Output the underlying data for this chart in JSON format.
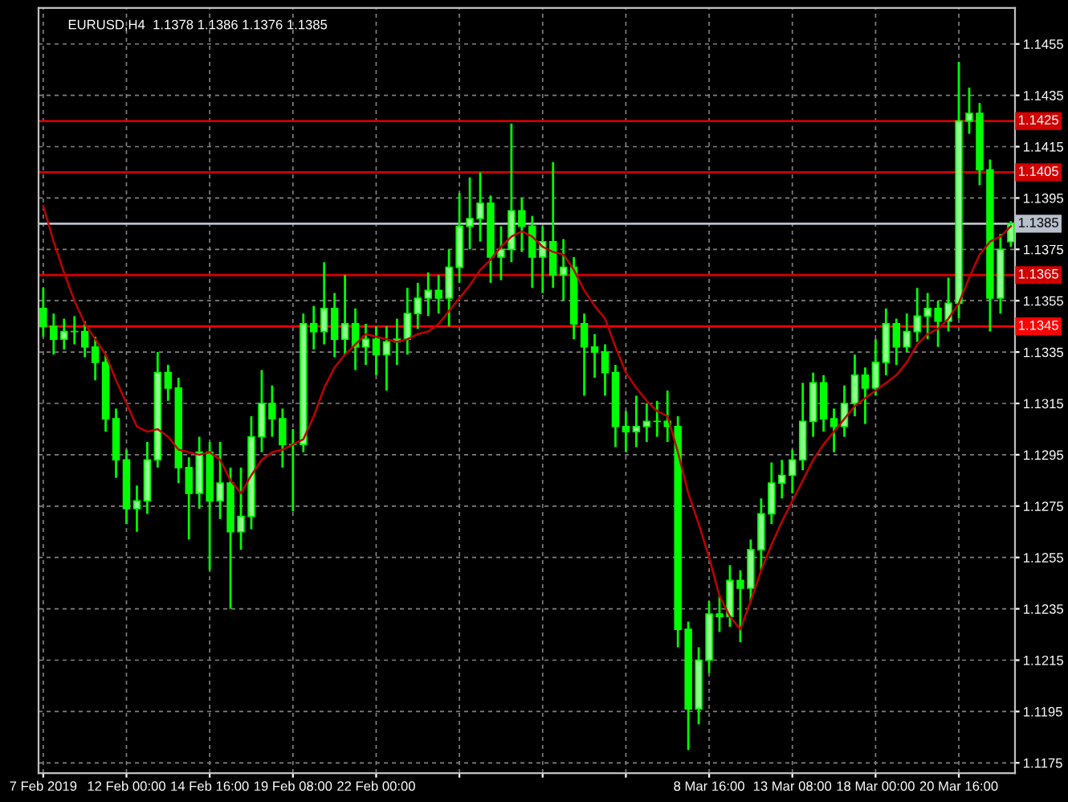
{
  "chart_data": {
    "type": "candlestick",
    "title": "EURUSD,H4  1.1378 1.1386 1.1376 1.1385",
    "categories": [
      "7 Feb 2019",
      null,
      null,
      null,
      null,
      null,
      null,
      null,
      "12 Feb 00:00",
      null,
      null,
      null,
      null,
      null,
      null,
      null,
      "14 Feb 16:00",
      null,
      null,
      null,
      null,
      null,
      null,
      null,
      "19 Feb 08:00",
      null,
      null,
      null,
      null,
      null,
      null,
      null,
      "22 Feb 00:00",
      null,
      null,
      null,
      null,
      null,
      null,
      null,
      null,
      null,
      null,
      null,
      null,
      null,
      null,
      null,
      null,
      null,
      null,
      null,
      null,
      null,
      null,
      null,
      null,
      null,
      null,
      null,
      null,
      null,
      null,
      null,
      "8 Mar 16:00",
      null,
      null,
      null,
      null,
      null,
      null,
      null,
      "13 Mar 08:00",
      null,
      null,
      null,
      null,
      null,
      null,
      null,
      "18 Mar 00:00",
      null,
      null,
      null,
      null,
      null,
      null,
      null,
      "20 Mar 16:00",
      null,
      null,
      null,
      null,
      null
    ],
    "series": [
      {
        "type": "candlestick",
        "color": "#00ff00",
        "ohlc": [
          [
            1.1352,
            1.136,
            1.1341,
            1.1345
          ],
          [
            1.1345,
            1.135,
            1.1334,
            1.134
          ],
          [
            1.134,
            1.1348,
            1.1336,
            1.1343
          ],
          [
            1.1343,
            1.1349,
            1.1338,
            1.1343
          ],
          [
            1.1343,
            1.1347,
            1.1333,
            1.1337
          ],
          [
            1.1337,
            1.1341,
            1.1324,
            1.1331
          ],
          [
            1.1331,
            1.1334,
            1.1304,
            1.1309
          ],
          [
            1.1309,
            1.1313,
            1.1286,
            1.1293
          ],
          [
            1.1293,
            1.1297,
            1.1268,
            1.1274
          ],
          [
            1.1274,
            1.1283,
            1.1265,
            1.1277
          ],
          [
            1.1277,
            1.13,
            1.1272,
            1.1293
          ],
          [
            1.1293,
            1.1335,
            1.129,
            1.1327
          ],
          [
            1.1327,
            1.133,
            1.1316,
            1.1321
          ],
          [
            1.1321,
            1.1325,
            1.1284,
            1.129
          ],
          [
            1.129,
            1.1294,
            1.1262,
            1.128
          ],
          [
            1.128,
            1.1302,
            1.1274,
            1.1296
          ],
          [
            1.1296,
            1.13,
            1.125,
            1.1277
          ],
          [
            1.1277,
            1.13,
            1.127,
            1.1284
          ],
          [
            1.1284,
            1.129,
            1.1235,
            1.1265
          ],
          [
            1.1265,
            1.129,
            1.1258,
            1.1271
          ],
          [
            1.1271,
            1.131,
            1.1266,
            1.1302
          ],
          [
            1.1302,
            1.1328,
            1.1296,
            1.1315
          ],
          [
            1.1315,
            1.1322,
            1.1302,
            1.1309
          ],
          [
            1.1309,
            1.1313,
            1.129,
            1.1299
          ],
          [
            1.1299,
            1.1305,
            1.1273,
            1.1299
          ],
          [
            1.1299,
            1.135,
            1.1296,
            1.1346
          ],
          [
            1.1346,
            1.1353,
            1.1336,
            1.1343
          ],
          [
            1.1343,
            1.137,
            1.1338,
            1.1352
          ],
          [
            1.1352,
            1.1358,
            1.1333,
            1.134
          ],
          [
            1.134,
            1.1365,
            1.1334,
            1.1346
          ],
          [
            1.1346,
            1.1352,
            1.1328,
            1.1337
          ],
          [
            1.1337,
            1.1346,
            1.133,
            1.134
          ],
          [
            1.134,
            1.1345,
            1.1326,
            1.1334
          ],
          [
            1.1334,
            1.1345,
            1.132,
            1.1339
          ],
          [
            1.1339,
            1.1348,
            1.133,
            1.134
          ],
          [
            1.134,
            1.136,
            1.1334,
            1.135
          ],
          [
            1.135,
            1.1362,
            1.1344,
            1.1356
          ],
          [
            1.1356,
            1.1366,
            1.1349,
            1.1359
          ],
          [
            1.1359,
            1.1365,
            1.135,
            1.1356
          ],
          [
            1.1356,
            1.1375,
            1.1345,
            1.1368
          ],
          [
            1.1368,
            1.1397,
            1.1362,
            1.1384
          ],
          [
            1.1384,
            1.1403,
            1.1375,
            1.1387
          ],
          [
            1.1387,
            1.1405,
            1.1378,
            1.1393
          ],
          [
            1.1393,
            1.1396,
            1.1362,
            1.1372
          ],
          [
            1.1372,
            1.1384,
            1.1363,
            1.1375
          ],
          [
            1.1375,
            1.1424,
            1.137,
            1.139
          ],
          [
            1.139,
            1.1395,
            1.1374,
            1.1384
          ],
          [
            1.1384,
            1.1388,
            1.136,
            1.1372
          ],
          [
            1.1372,
            1.1384,
            1.1358,
            1.1378
          ],
          [
            1.1378,
            1.1409,
            1.136,
            1.1365
          ],
          [
            1.1365,
            1.1379,
            1.1355,
            1.1368
          ],
          [
            1.1368,
            1.1372,
            1.134,
            1.1346
          ],
          [
            1.1346,
            1.135,
            1.1318,
            1.1337
          ],
          [
            1.1337,
            1.1342,
            1.1325,
            1.1335
          ],
          [
            1.1335,
            1.1338,
            1.1318,
            1.1327
          ],
          [
            1.1327,
            1.133,
            1.1298,
            1.1306
          ],
          [
            1.1306,
            1.1312,
            1.1296,
            1.1304
          ],
          [
            1.1304,
            1.1318,
            1.1298,
            1.1306
          ],
          [
            1.1306,
            1.1315,
            1.13,
            1.1308
          ],
          [
            1.1308,
            1.1316,
            1.1302,
            1.1308
          ],
          [
            1.1308,
            1.132,
            1.13,
            1.1306
          ],
          [
            1.1306,
            1.131,
            1.122,
            1.1227
          ],
          [
            1.1227,
            1.123,
            1.118,
            1.1196
          ],
          [
            1.1196,
            1.122,
            1.119,
            1.1215
          ],
          [
            1.1215,
            1.1238,
            1.121,
            1.1233
          ],
          [
            1.1233,
            1.124,
            1.1226,
            1.1232
          ],
          [
            1.1232,
            1.1252,
            1.1228,
            1.1246
          ],
          [
            1.1246,
            1.125,
            1.1222,
            1.1243
          ],
          [
            1.1243,
            1.1262,
            1.1238,
            1.1258
          ],
          [
            1.1258,
            1.1278,
            1.125,
            1.1272
          ],
          [
            1.1272,
            1.1292,
            1.1268,
            1.1284
          ],
          [
            1.1284,
            1.1293,
            1.1278,
            1.1287
          ],
          [
            1.1287,
            1.1297,
            1.128,
            1.1293
          ],
          [
            1.1293,
            1.1323,
            1.1289,
            1.1308
          ],
          [
            1.1308,
            1.1327,
            1.1302,
            1.1323
          ],
          [
            1.1323,
            1.1326,
            1.1304,
            1.1309
          ],
          [
            1.1309,
            1.1313,
            1.1296,
            1.1306
          ],
          [
            1.1306,
            1.1322,
            1.1302,
            1.1315
          ],
          [
            1.1315,
            1.1334,
            1.131,
            1.1326
          ],
          [
            1.1326,
            1.1329,
            1.1307,
            1.1321
          ],
          [
            1.1321,
            1.134,
            1.1318,
            1.1331
          ],
          [
            1.1331,
            1.1352,
            1.1326,
            1.1346
          ],
          [
            1.1346,
            1.1348,
            1.133,
            1.1337
          ],
          [
            1.1337,
            1.135,
            1.1335,
            1.1343
          ],
          [
            1.1343,
            1.136,
            1.1339,
            1.1349
          ],
          [
            1.1349,
            1.1358,
            1.134,
            1.1352
          ],
          [
            1.1352,
            1.1355,
            1.1337,
            1.1347
          ],
          [
            1.1347,
            1.1364,
            1.1343,
            1.1354
          ],
          [
            1.1354,
            1.1448,
            1.1348,
            1.1425
          ],
          [
            1.1425,
            1.1438,
            1.142,
            1.1428
          ],
          [
            1.1428,
            1.1432,
            1.14,
            1.1406
          ],
          [
            1.1406,
            1.141,
            1.1343,
            1.1356
          ],
          [
            1.1356,
            1.1381,
            1.135,
            1.1375
          ],
          [
            1.1378,
            1.1386,
            1.1376,
            1.1385
          ]
        ]
      },
      {
        "type": "line",
        "color": "#c00000",
        "values": [
          1.1392,
          1.1378,
          1.1366,
          1.1355,
          1.1346,
          1.134,
          1.1334,
          1.1324,
          1.1315,
          1.1306,
          1.1304,
          1.1305,
          1.1302,
          1.1297,
          1.1296,
          1.1295,
          1.1296,
          1.1293,
          1.1285,
          1.128,
          1.1287,
          1.1293,
          1.1296,
          1.1297,
          1.1299,
          1.1301,
          1.131,
          1.1321,
          1.1329,
          1.1334,
          1.1338,
          1.1342,
          1.1341,
          1.134,
          1.1339,
          1.134,
          1.1342,
          1.1343,
          1.1346,
          1.1351,
          1.1356,
          1.1361,
          1.1367,
          1.1371,
          1.1376,
          1.138,
          1.1382,
          1.138,
          1.1376,
          1.1374,
          1.1373,
          1.1367,
          1.1359,
          1.1353,
          1.1348,
          1.1337,
          1.1327,
          1.1321,
          1.1316,
          1.1312,
          1.131,
          1.1296,
          1.128,
          1.1268,
          1.1255,
          1.124,
          1.1232,
          1.1227,
          1.1238,
          1.125,
          1.126,
          1.1269,
          1.1277,
          1.1285,
          1.1293,
          1.1299,
          1.1304,
          1.1309,
          1.1314,
          1.1317,
          1.132,
          1.1323,
          1.1326,
          1.1331,
          1.1338,
          1.1342,
          1.1344,
          1.1348,
          1.1354,
          1.1364,
          1.1373,
          1.1378,
          1.138,
          1.1384
        ]
      }
    ],
    "ylim": [
      1.1171,
      1.1469
    ],
    "yticks": [
      {
        "value": 1.1455,
        "label": "1.1455"
      },
      {
        "value": 1.1435,
        "label": "1.1435"
      },
      {
        "value": 1.1415,
        "label": "1.1415"
      },
      {
        "value": 1.1395,
        "label": "1.1395"
      },
      {
        "value": 1.1375,
        "label": "1.1375"
      },
      {
        "value": 1.1355,
        "label": "1.1355"
      },
      {
        "value": 1.1335,
        "label": "1.1335"
      },
      {
        "value": 1.1315,
        "label": "1.1315"
      },
      {
        "value": 1.1295,
        "label": "1.1295"
      },
      {
        "value": 1.1275,
        "label": "1.1275"
      },
      {
        "value": 1.1255,
        "label": "1.1255"
      },
      {
        "value": 1.1235,
        "label": "1.1235"
      },
      {
        "value": 1.1215,
        "label": "1.1215"
      },
      {
        "value": 1.1195,
        "label": "1.1195"
      },
      {
        "value": 1.1175,
        "label": "1.1175"
      }
    ],
    "ref_lines": [
      {
        "axis": "y",
        "value": 1.1425,
        "label": "1.1425",
        "color": "#d00000"
      },
      {
        "axis": "y",
        "value": 1.1405,
        "label": "1.1405",
        "color": "#d00000"
      },
      {
        "axis": "y",
        "value": 1.1385,
        "label": "1.1385",
        "color": "#b8c0cc"
      },
      {
        "axis": "y",
        "value": 1.1365,
        "label": "1.1365",
        "color": "#d00000"
      },
      {
        "axis": "y",
        "value": 1.1345,
        "label": "1.1345",
        "color": "#ff0000"
      }
    ],
    "grid": true
  }
}
